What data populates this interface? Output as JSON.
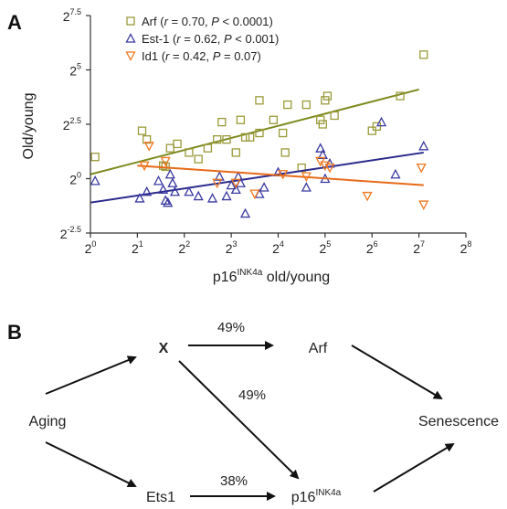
{
  "panel_a": {
    "label": "A",
    "chart_data": {
      "type": "scatter",
      "xlabel": "p16",
      "xlabel_sup": "INK4a",
      "xlabel_suffix": " old/young",
      "ylabel": "Old/young",
      "x_scale": "log2",
      "y_scale": "log2",
      "xlim_exp": [
        0,
        8
      ],
      "ylim_exp": [
        -2.5,
        7.5
      ],
      "x_ticks": [
        {
          "base": "2",
          "exp": "0",
          "v": 0
        },
        {
          "base": "2",
          "exp": "1",
          "v": 1
        },
        {
          "base": "2",
          "exp": "2",
          "v": 2
        },
        {
          "base": "2",
          "exp": "3",
          "v": 3
        },
        {
          "base": "2",
          "exp": "4",
          "v": 4
        },
        {
          "base": "2",
          "exp": "5",
          "v": 5
        },
        {
          "base": "2",
          "exp": "6",
          "v": 6
        },
        {
          "base": "2",
          "exp": "7",
          "v": 7
        },
        {
          "base": "2",
          "exp": "8",
          "v": 8
        }
      ],
      "y_ticks": [
        {
          "base": "2",
          "exp": "-2.5",
          "v": -2.5
        },
        {
          "base": "2",
          "exp": "0",
          "v": 0
        },
        {
          "base": "2",
          "exp": "2.5",
          "v": 2.5
        },
        {
          "base": "2",
          "exp": "5",
          "v": 5
        },
        {
          "base": "2",
          "exp": "7.5",
          "v": 7.5
        }
      ],
      "grid": false,
      "legend_position": "top-left",
      "series": [
        {
          "name": "Arf",
          "stats_prefix": "(",
          "r_label": "r",
          "r_value": " = 0.70, ",
          "p_label": "P",
          "p_value": " < 0.0001)",
          "marker": "square",
          "color": "#9a9a3a",
          "trend_color": "#7d8a1e",
          "trend": [
            [
              0,
              0.2
            ],
            [
              7,
              4.1
            ]
          ],
          "points": [
            [
              0.1,
              1.0
            ],
            [
              1.1,
              2.2
            ],
            [
              1.2,
              1.8
            ],
            [
              1.55,
              0.6
            ],
            [
              1.6,
              0.55
            ],
            [
              1.7,
              1.4
            ],
            [
              1.85,
              1.6
            ],
            [
              2.1,
              1.2
            ],
            [
              2.3,
              0.9
            ],
            [
              2.5,
              1.4
            ],
            [
              2.7,
              1.8
            ],
            [
              2.8,
              2.6
            ],
            [
              2.9,
              1.8
            ],
            [
              3.1,
              1.2
            ],
            [
              3.2,
              2.7
            ],
            [
              3.3,
              1.9
            ],
            [
              3.4,
              1.9
            ],
            [
              3.6,
              2.1
            ],
            [
              3.6,
              3.6
            ],
            [
              3.9,
              2.7
            ],
            [
              4.1,
              2.1
            ],
            [
              4.15,
              1.2
            ],
            [
              4.2,
              3.4
            ],
            [
              4.5,
              0.5
            ],
            [
              4.6,
              3.4
            ],
            [
              4.9,
              2.7
            ],
            [
              4.95,
              2.5
            ],
            [
              5.0,
              3.6
            ],
            [
              5.05,
              3.8
            ],
            [
              5.2,
              2.9
            ],
            [
              6.0,
              2.2
            ],
            [
              6.1,
              2.4
            ],
            [
              6.6,
              3.8
            ],
            [
              7.1,
              5.7
            ]
          ]
        },
        {
          "name": "Est-1",
          "stats_prefix": "(",
          "r_label": "r",
          "r_value": " = 0.62, ",
          "p_label": "P",
          "p_value": " < 0.001)",
          "marker": "triangle-up",
          "color": "#3a3aa0",
          "trend_color": "#2a2a8c",
          "trend": [
            [
              0,
              -1.1
            ],
            [
              7.1,
              1.2
            ]
          ],
          "points": [
            [
              0.1,
              -0.1
            ],
            [
              1.05,
              -0.9
            ],
            [
              1.2,
              -0.6
            ],
            [
              1.45,
              -0.1
            ],
            [
              1.55,
              -0.5
            ],
            [
              1.6,
              -1.0
            ],
            [
              1.65,
              -1.1
            ],
            [
              1.7,
              0.2
            ],
            [
              1.75,
              -0.2
            ],
            [
              1.8,
              -0.6
            ],
            [
              2.1,
              -0.6
            ],
            [
              2.3,
              -0.8
            ],
            [
              2.6,
              -0.9
            ],
            [
              2.75,
              0.1
            ],
            [
              2.9,
              -0.8
            ],
            [
              3.0,
              -0.3
            ],
            [
              3.1,
              -0.5
            ],
            [
              3.15,
              0.1
            ],
            [
              3.2,
              -0.2
            ],
            [
              3.3,
              -1.6
            ],
            [
              3.6,
              -0.7
            ],
            [
              3.7,
              -0.4
            ],
            [
              4.0,
              0.3
            ],
            [
              4.6,
              -0.4
            ],
            [
              4.9,
              1.4
            ],
            [
              4.95,
              1.1
            ],
            [
              5.0,
              0.0
            ],
            [
              5.1,
              0.7
            ],
            [
              6.2,
              2.6
            ],
            [
              6.5,
              0.2
            ],
            [
              7.1,
              1.5
            ]
          ]
        },
        {
          "name": "Id1",
          "stats_prefix": "(",
          "r_label": "r",
          "r_value": " = 0.42, ",
          "p_label": "P",
          "p_value": " = 0.07)",
          "marker": "triangle-down",
          "color": "#f07820",
          "trend_color": "#e86a1a",
          "trend": [
            [
              1.0,
              0.6
            ],
            [
              7.1,
              -0.3
            ]
          ],
          "points": [
            [
              1.15,
              0.6
            ],
            [
              1.25,
              1.5
            ],
            [
              1.6,
              0.8
            ],
            [
              2.7,
              -0.2
            ],
            [
              3.1,
              -0.2
            ],
            [
              3.5,
              -0.7
            ],
            [
              4.1,
              0.2
            ],
            [
              4.6,
              0.1
            ],
            [
              4.9,
              0.8
            ],
            [
              5.0,
              0.6
            ],
            [
              5.1,
              0.5
            ],
            [
              5.9,
              -0.8
            ],
            [
              7.05,
              0.5
            ],
            [
              7.1,
              -1.2
            ]
          ]
        }
      ]
    }
  },
  "panel_b": {
    "label": "B",
    "nodes": {
      "aging": "Aging",
      "x": "X",
      "arf": "Arf",
      "ets1": "Ets1",
      "p16": "p16",
      "p16_sup": "INK4a",
      "senescence": "Senescence"
    },
    "edge_labels": {
      "x_arf": "49%",
      "x_p16": "49%",
      "ets1_p16": "38%"
    }
  }
}
